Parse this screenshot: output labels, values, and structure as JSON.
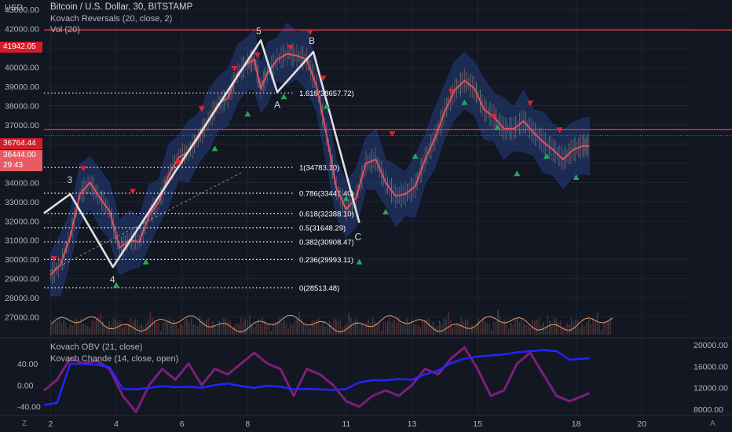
{
  "header": {
    "currency": "USD",
    "title": "Bitcoin / U.S. Dollar, 30, BITSTAMP",
    "indicator1": "Kovach Reversals (20, close, 2)",
    "indicator2": "Vol (20)"
  },
  "lower_panel": {
    "indicator1": "Kovach OBV (21, close)",
    "indicator2": "Kovach Chande (14, close, open)"
  },
  "price_badges": {
    "top": "41942.05",
    "mid": "36764.44",
    "last": "36444.00",
    "countdown": "29:43"
  },
  "controls": {
    "left": "Z",
    "right": "A"
  },
  "colors": {
    "background": "#131722",
    "resistance": "#f23645",
    "price_line": "#e05060",
    "band": "#2a4fa8",
    "wave": "#e0e0e0",
    "fib": "#ffffff",
    "obv": "#2424ff",
    "chande": "#7b1f7b",
    "volume_ma": "#e0a070",
    "arrow_up": "#26a65b",
    "arrow_down": "#e8202a"
  },
  "chart_data": [
    {
      "type": "line",
      "title": "Bitcoin / U.S. Dollar, 30, BITSTAMP",
      "ylim": [
        26000,
        43500
      ],
      "xlim": [
        1.8,
        21.5
      ],
      "x_ticks": [
        "2",
        "4",
        "6",
        "8",
        "11",
        "13",
        "15",
        "18",
        "20"
      ],
      "x_tick_values": [
        2,
        4,
        6,
        8,
        11,
        13,
        15,
        18,
        20
      ],
      "y_ticks": [
        27000,
        28000,
        29000,
        30000,
        31000,
        32000,
        33000,
        34000,
        35000,
        36000,
        37000,
        38000,
        39000,
        40000,
        41000,
        42000,
        43000
      ],
      "y_tick_labels": [
        "27000.00",
        "28000.00",
        "29000.00",
        "30000.00",
        "31000.00",
        "32000.00",
        "33000.00",
        "34000.00",
        "35000.00",
        "36000.00",
        "37000.00",
        "38000.00",
        "39000.00",
        "40000.00",
        "41000.00",
        "42000.00",
        "43000.00"
      ],
      "price": {
        "x": [
          2,
          2.3,
          2.6,
          2.9,
          3.2,
          3.5,
          3.8,
          4.1,
          4.4,
          4.7,
          5,
          5.3,
          5.6,
          5.9,
          6.2,
          6.5,
          6.8,
          7.1,
          7.4,
          7.7,
          8,
          8.2,
          8.4,
          8.6,
          8.9,
          9.2,
          9.5,
          9.8,
          10.1,
          10.4,
          10.7,
          11,
          11.3,
          11.6,
          11.9,
          12.2,
          12.5,
          12.8,
          13.1,
          13.4,
          13.7,
          14,
          14.3,
          14.6,
          14.9,
          15.2,
          15.5,
          15.8,
          16.1,
          16.4,
          16.7,
          17,
          17.3,
          17.6,
          17.9,
          18.2,
          18.4
        ],
        "y": [
          29200,
          29700,
          31200,
          33400,
          34000,
          33200,
          32500,
          30600,
          31000,
          30900,
          32300,
          33000,
          34400,
          35300,
          35600,
          36300,
          37200,
          38100,
          38400,
          39700,
          40200,
          40400,
          38900,
          39700,
          40400,
          40700,
          40600,
          40400,
          39000,
          36500,
          33700,
          32600,
          33200,
          35000,
          35200,
          34000,
          33300,
          33400,
          33800,
          35200,
          36300,
          37700,
          38800,
          39300,
          38900,
          37800,
          37400,
          36800,
          36800,
          37200,
          36600,
          36100,
          35700,
          35200,
          35700,
          35900,
          35900
        ]
      },
      "fibonacci": [
        {
          "ratio": "0",
          "label": "0(28513.48)",
          "value": 28513.48
        },
        {
          "ratio": "0.236",
          "label": "0.236(29993.11)",
          "value": 29993.11
        },
        {
          "ratio": "0.382",
          "label": "0.382(30908.47)",
          "value": 30908.47
        },
        {
          "ratio": "0.5",
          "label": "0.5(31648.29)",
          "value": 31648.29
        },
        {
          "ratio": "0.618",
          "label": "0.618(32388.10)",
          "value": 32388.1
        },
        {
          "ratio": "0.786",
          "label": "0.786(33441.40)",
          "value": 33441.4
        },
        {
          "ratio": "1",
          "label": "1(34783.10)",
          "value": 34783.1
        },
        {
          "ratio": "1.618",
          "label": "1.618(38657.72)",
          "value": 38657.72
        }
      ],
      "resistance_levels": [
        41942.05,
        36764.44
      ],
      "waves": [
        {
          "label": "",
          "x": 1.8,
          "y": 32400
        },
        {
          "label": "3",
          "x": 2.6,
          "y": 33400
        },
        {
          "label": "4",
          "x": 3.9,
          "y": 29600
        },
        {
          "label": "5",
          "x": 8.4,
          "y": 41400
        },
        {
          "label": "A",
          "x": 8.9,
          "y": 38700
        },
        {
          "label": "B",
          "x": 10.0,
          "y": 40800
        },
        {
          "label": "C",
          "x": 11.4,
          "y": 31900
        }
      ]
    },
    {
      "type": "line",
      "title": "Kovach OBV (21, close) / Kovach Chande (14, close, open)",
      "x": [
        1.8,
        2.2,
        2.6,
        3.0,
        3.4,
        3.8,
        4.2,
        4.6,
        5.0,
        5.4,
        5.8,
        6.2,
        6.6,
        7.0,
        7.4,
        7.8,
        8.2,
        8.6,
        9.0,
        9.4,
        9.8,
        10.2,
        10.6,
        11.0,
        11.4,
        11.8,
        12.2,
        12.6,
        13.0,
        13.4,
        13.8,
        14.2,
        14.6,
        15.0,
        15.4,
        15.8,
        16.2,
        16.6,
        17.0,
        17.4,
        17.8,
        18.2,
        18.4
      ],
      "series": [
        {
          "name": "Kovach OBV (21, close)",
          "axis": "right",
          "ylim": [
            7000,
            21000
          ],
          "y_tick_labels": [
            "8000.00",
            "12000.00",
            "16000.00",
            "20000.00"
          ],
          "values": [
            8800,
            9200,
            16500,
            16400,
            16300,
            15800,
            11800,
            11700,
            12000,
            12300,
            12100,
            12200,
            12000,
            12500,
            12800,
            12300,
            12000,
            12400,
            12200,
            11700,
            11800,
            11700,
            11600,
            11800,
            13000,
            13400,
            13400,
            13600,
            13500,
            14500,
            15200,
            16600,
            17400,
            17800,
            18000,
            18200,
            18600,
            18800,
            19000,
            18800,
            17200,
            17400,
            17500
          ]
        },
        {
          "name": "Kovach Chande (14, close, open)",
          "axis": "left",
          "ylim": [
            -55,
            85
          ],
          "y_tick_labels": [
            "-40.00",
            "0.00",
            "40.00"
          ],
          "values": [
            -10,
            10,
            50,
            40,
            45,
            30,
            -20,
            -50,
            0,
            30,
            10,
            40,
            0,
            30,
            20,
            40,
            60,
            40,
            30,
            -20,
            30,
            20,
            0,
            -30,
            -40,
            -20,
            -10,
            -20,
            0,
            30,
            20,
            50,
            70,
            30,
            -20,
            -10,
            40,
            60,
            20,
            -20,
            -30,
            -20,
            -15
          ]
        }
      ]
    }
  ]
}
